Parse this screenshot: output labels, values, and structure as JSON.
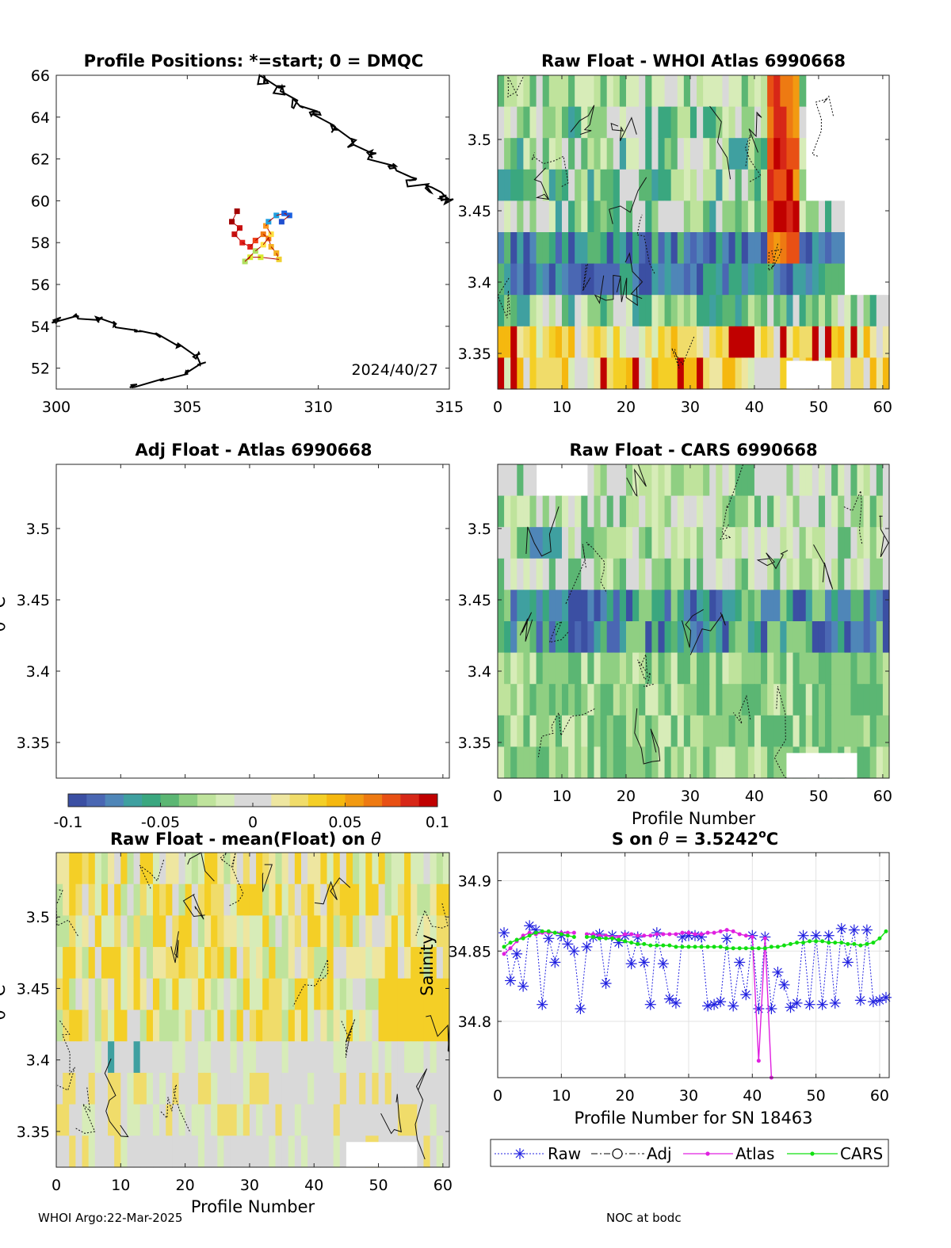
{
  "footer": {
    "left": "WHOI Argo:22-Mar-2025",
    "right": "NOC at bodc"
  },
  "colorbar": {
    "ticks": [
      "-0.1",
      "-0.05",
      "0",
      "0.05",
      "0.1"
    ],
    "colors": [
      "#3b4fa3",
      "#4a67b3",
      "#4f86b8",
      "#3fa0a0",
      "#3aa77f",
      "#5bb673",
      "#8fcf82",
      "#bfe39c",
      "#d7ecb8",
      "#d9d9d9",
      "#d9d9d9",
      "#eee6a0",
      "#f0dc6a",
      "#f4cf26",
      "#f5b80f",
      "#f29a11",
      "#ee7a12",
      "#e85014",
      "#d72717",
      "#c00000"
    ]
  },
  "chart_data": [
    {
      "id": "map",
      "type": "scatter",
      "title": "Profile Positions: *=start; 0 = DMQC",
      "date_label": "2024/40/27",
      "xlim": [
        300,
        315
      ],
      "ylim": [
        51,
        66
      ],
      "xticks": [
        "300",
        "305",
        "310",
        "315"
      ],
      "yticks": [
        "52",
        "54",
        "56",
        "58",
        "60",
        "62",
        "64",
        "66"
      ],
      "track_colors": [
        "#a00000",
        "#c81010",
        "#e0201a",
        "#f04018",
        "#f07a10",
        "#f5b020",
        "#f0d030",
        "#d8ea30",
        "#b0e060",
        "#ffe040",
        "#ff9a20",
        "#20a0e0",
        "#1a60e0",
        "#2050d0"
      ],
      "track": [
        [
          306.9,
          59.5
        ],
        [
          306.7,
          59.0
        ],
        [
          307.0,
          58.7
        ],
        [
          306.8,
          58.4
        ],
        [
          307.1,
          58.0
        ],
        [
          307.4,
          57.8
        ],
        [
          307.6,
          58.1
        ],
        [
          307.9,
          58.4
        ],
        [
          308.1,
          58.2
        ],
        [
          308.2,
          57.8
        ],
        [
          308.4,
          57.5
        ],
        [
          308.5,
          57.2
        ],
        [
          307.8,
          57.3
        ],
        [
          307.4,
          57.3
        ],
        [
          307.2,
          57.1
        ],
        [
          307.6,
          57.6
        ],
        [
          307.9,
          57.9
        ],
        [
          308.2,
          58.4
        ],
        [
          308.0,
          58.8
        ],
        [
          308.1,
          59.0
        ],
        [
          308.4,
          59.3
        ],
        [
          308.7,
          59.4
        ],
        [
          308.9,
          59.3
        ],
        [
          308.6,
          59.0
        ]
      ]
    },
    {
      "id": "atlas",
      "type": "heatmap",
      "title": "Raw Float - WHOI Atlas  6990668",
      "xlim": [
        0,
        61
      ],
      "ylim": [
        3.325,
        3.545
      ],
      "xticks": [
        "0",
        "10",
        "20",
        "30",
        "40",
        "50",
        "60"
      ],
      "yticks": [
        "3.35",
        "3.4",
        "3.45",
        "3.5"
      ]
    },
    {
      "id": "adj",
      "type": "heatmap",
      "title": "Adj Float - Atlas  6990668",
      "xlim": [
        0,
        61
      ],
      "ylim": [
        3.325,
        3.545
      ],
      "yticks": [
        "3.35",
        "3.4",
        "3.45",
        "3.5"
      ],
      "ylabel": "θ °C"
    },
    {
      "id": "cars",
      "type": "heatmap",
      "title": "Raw Float - CARS  6990668",
      "xlabel": "Profile Number",
      "xlim": [
        0,
        61
      ],
      "ylim": [
        3.325,
        3.545
      ],
      "xticks": [
        "0",
        "10",
        "20",
        "30",
        "40",
        "50",
        "60"
      ],
      "yticks": [
        "3.35",
        "3.4",
        "3.45",
        "3.5"
      ]
    },
    {
      "id": "mean",
      "type": "heatmap",
      "title_main": "Raw Float - mean(Float) on ",
      "title_sym": "θ",
      "xlabel": "Profile Number",
      "ylabel": "θ °C",
      "xlim": [
        0,
        61
      ],
      "ylim": [
        3.325,
        3.545
      ],
      "xticks": [
        "0",
        "10",
        "20",
        "30",
        "40",
        "50",
        "60"
      ],
      "yticks": [
        "3.35",
        "3.4",
        "3.45",
        "3.5"
      ]
    },
    {
      "id": "salinity",
      "type": "line",
      "title_pre": "S on ",
      "title_sym": "θ",
      "title_value": " = 3.5242",
      "title_sup": "o",
      "title_unit": "C",
      "xlabel": "Profile Number for SN 18463",
      "ylabel": "Salinity",
      "xlim": [
        0,
        61.5
      ],
      "ylim": [
        34.76,
        34.92
      ],
      "xticks": [
        "0",
        "10",
        "20",
        "30",
        "40",
        "50",
        "60"
      ],
      "yticks": [
        "34.8",
        "34.85",
        "34.9"
      ],
      "legend": [
        "Raw",
        "Adj",
        "Atlas",
        "CARS"
      ],
      "series": [
        {
          "name": "Raw",
          "color": "#2020e0",
          "marker": "asterisk",
          "x": [
            1,
            2,
            3,
            4,
            5,
            6,
            7,
            8,
            9,
            10,
            11,
            12,
            13,
            14,
            15,
            16,
            17,
            18,
            19,
            20,
            21,
            22,
            23,
            24,
            25,
            26,
            27,
            28,
            29,
            30,
            31,
            32,
            33,
            34,
            35,
            36,
            37,
            38,
            39,
            40,
            41,
            42,
            43,
            44,
            45,
            46,
            47,
            48,
            49,
            50,
            51,
            52,
            53,
            54,
            55,
            56,
            57,
            58,
            59,
            60,
            61
          ],
          "values": [
            34.863,
            34.829,
            34.848,
            34.825,
            34.868,
            34.865,
            34.812,
            34.859,
            34.842,
            34.861,
            34.855,
            34.85,
            34.809,
            34.853,
            34.86,
            34.862,
            34.827,
            34.861,
            34.856,
            34.861,
            34.841,
            34.86,
            34.842,
            34.812,
            34.863,
            34.841,
            34.816,
            34.813,
            34.86,
            34.861,
            34.861,
            34.86,
            34.811,
            34.812,
            34.814,
            34.859,
            34.811,
            34.842,
            34.819,
            34.861,
            34.809,
            34.86,
            34.809,
            34.835,
            34.826,
            34.81,
            34.813,
            34.861,
            34.812,
            34.861,
            34.812,
            34.861,
            34.813,
            34.866,
            34.842,
            34.865,
            34.815,
            34.865,
            34.814,
            34.815,
            34.817
          ]
        },
        {
          "name": "Atlas",
          "color": "#e020e0",
          "marker": "dot",
          "x": [
            1,
            2,
            3,
            4,
            5,
            6,
            7,
            8,
            9,
            10,
            11,
            12,
            null,
            14,
            15,
            16,
            17,
            18,
            19,
            20,
            21,
            22,
            23,
            24,
            25,
            26,
            27,
            28,
            29,
            30,
            31,
            32,
            33,
            34,
            35,
            36,
            37,
            38,
            39,
            40,
            41,
            42,
            43
          ],
          "values": [
            34.848,
            34.852,
            34.857,
            34.861,
            34.863,
            34.862,
            34.863,
            34.863,
            34.863,
            34.863,
            34.863,
            34.863,
            null,
            34.862,
            34.862,
            34.861,
            34.861,
            34.86,
            34.86,
            34.862,
            34.862,
            34.861,
            34.861,
            34.861,
            34.862,
            34.862,
            34.862,
            34.862,
            34.863,
            34.863,
            34.862,
            34.862,
            34.863,
            34.863,
            34.864,
            34.865,
            34.864,
            34.862,
            34.861,
            34.86,
            34.772,
            34.859,
            34.76
          ]
        },
        {
          "name": "CARS",
          "color": "#10e010",
          "marker": "dot",
          "x": [
            1,
            2,
            3,
            4,
            5,
            6,
            7,
            8,
            9,
            10,
            11,
            12,
            null,
            14,
            15,
            16,
            17,
            18,
            19,
            20,
            21,
            22,
            23,
            24,
            25,
            26,
            27,
            28,
            29,
            30,
            31,
            32,
            33,
            34,
            35,
            36,
            37,
            38,
            39,
            40,
            41,
            42,
            43,
            44,
            45,
            46,
            47,
            48,
            49,
            50,
            51,
            52,
            53,
            54,
            55,
            56,
            57,
            58,
            59,
            60,
            61
          ],
          "values": [
            34.853,
            34.856,
            34.858,
            34.859,
            34.861,
            34.863,
            34.864,
            34.864,
            34.863,
            34.862,
            34.861,
            34.86,
            null,
            34.86,
            34.86,
            34.859,
            34.859,
            34.859,
            34.858,
            34.857,
            34.856,
            34.855,
            34.855,
            34.854,
            34.854,
            34.854,
            34.854,
            34.853,
            34.853,
            34.853,
            34.853,
            34.853,
            34.853,
            34.853,
            34.853,
            34.852,
            34.852,
            34.852,
            34.852,
            34.852,
            34.852,
            34.852,
            34.853,
            34.853,
            34.854,
            34.855,
            34.856,
            34.856,
            34.857,
            34.857,
            34.857,
            34.856,
            34.856,
            34.856,
            34.855,
            34.855,
            34.854,
            34.855,
            34.856,
            34.859,
            34.864
          ]
        }
      ]
    }
  ]
}
